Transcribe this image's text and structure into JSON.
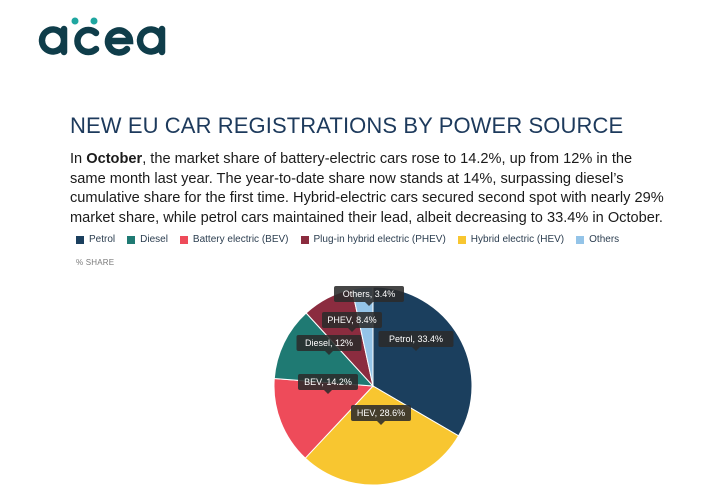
{
  "brand": {
    "logo_text": "acea",
    "logo_color": "#0f3d4a",
    "logo_accent": "#1fa6a0"
  },
  "header": {
    "title": "NEW EU CAR REGISTRATIONS BY POWER SOURCE"
  },
  "intro": {
    "lead": "In ",
    "bold": "October",
    "rest": ", the market share of battery-electric cars rose to 14.2%, up from 12% in the same month last year. The year-to-date share now stands at 14%, surpassing diesel’s cumulative share for the first time. Hybrid-electric cars secured second spot with nearly 29% market share, while petrol cars maintained their lead, albeit decreasing to 33.4% in October."
  },
  "chart_data": {
    "type": "pie",
    "ylabel": "% SHARE",
    "legend_position": "top",
    "slices": [
      {
        "name": "Petrol",
        "value": 33.4,
        "label": "Petrol, 33.4%",
        "color": "#1b3f5e"
      },
      {
        "name": "Hybrid electric (HEV)",
        "value": 28.6,
        "label": "HEV, 28.6%",
        "color": "#f8c630"
      },
      {
        "name": "Battery electric (BEV)",
        "value": 14.2,
        "label": "BEV, 14.2%",
        "color": "#ee4b5a"
      },
      {
        "name": "Diesel",
        "value": 12,
        "label": "Diesel, 12%",
        "color": "#1f7a73"
      },
      {
        "name": "Plug-in hybrid electric (PHEV)",
        "value": 8.4,
        "label": "PHEV, 8.4%",
        "color": "#8b2c3f"
      },
      {
        "name": "Others",
        "value": 3.4,
        "label": "Others, 3.4%",
        "color": "#94c4e8"
      }
    ],
    "legend": [
      {
        "name": "Petrol",
        "color": "#1b3f5e"
      },
      {
        "name": "Diesel",
        "color": "#1f7a73"
      },
      {
        "name": "Battery electric (BEV)",
        "color": "#ee4b5a"
      },
      {
        "name": "Plug-in hybrid electric (PHEV)",
        "color": "#8b2c3f"
      },
      {
        "name": "Hybrid electric (HEV)",
        "color": "#f8c630"
      },
      {
        "name": "Others",
        "color": "#94c4e8"
      }
    ]
  }
}
